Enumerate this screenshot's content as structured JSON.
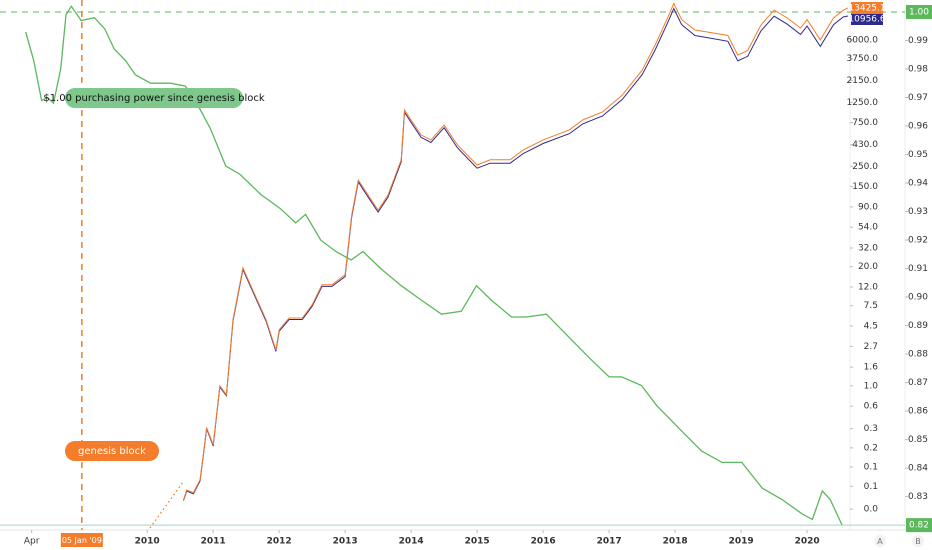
{
  "chart_data": {
    "type": "line",
    "log_scale": true,
    "xlim": [
      2007.77,
      2020.65
    ],
    "xticks": [
      {
        "value": 2008.25,
        "label": "Apr"
      },
      2010,
      2011,
      2012,
      2013,
      2014,
      2015,
      2016,
      2017,
      2018,
      2019,
      2020
    ],
    "genesis": {
      "x": 2009.01,
      "label": "05 Jan '09",
      "color": "#f57c2a"
    },
    "annotations": [
      {
        "text": "$1.00 purchasing power since genesis block",
        "color": "#7dc88a"
      },
      {
        "text": "genesis block",
        "color": "#f57c2a"
      }
    ],
    "ylim": [
      0.028,
      16370
    ],
    "yticks": [
      {
        "value": 6000,
        "label": "6000.0"
      },
      {
        "value": 3750,
        "label": "3750.0"
      },
      {
        "value": 2150,
        "label": "2150.0"
      },
      {
        "value": 1250,
        "label": "1250.0"
      },
      {
        "value": 750,
        "label": "750.0"
      },
      {
        "value": 430,
        "label": "430.0"
      },
      {
        "value": 250,
        "label": "250.0"
      },
      {
        "value": 150,
        "label": "150.0"
      },
      {
        "value": 90,
        "label": "90.0"
      },
      {
        "value": 54,
        "label": "54.0"
      },
      {
        "value": 32,
        "label": "32.0"
      },
      {
        "value": 20,
        "label": "20.0"
      },
      {
        "value": 12,
        "label": "12.0"
      },
      7.5,
      4.5,
      2.7,
      1.6,
      {
        "value": 1,
        "label": "1.0"
      },
      0.6,
      {
        "value": 0.34,
        "label": "0.3"
      },
      {
        "value": 0.21,
        "label": "0.2"
      },
      {
        "value": 0.13,
        "label": "0.1"
      },
      {
        "value": 0.08,
        "label": "0.1"
      },
      {
        "value": 0.045,
        "label": "0.0"
      }
    ],
    "y2lim": [
      0.819,
      1.0042
    ],
    "y2ticks": [
      {
        "value": 0.99,
        "label": "0.99"
      },
      {
        "value": 0.98,
        "label": "0.98"
      },
      {
        "value": 0.97,
        "label": "0.97"
      },
      {
        "value": 0.96,
        "label": "0.96"
      },
      {
        "value": 0.95,
        "label": "0.95"
      },
      {
        "value": 0.94,
        "label": "0.94"
      },
      {
        "value": 0.93,
        "label": "0.93"
      },
      {
        "value": 0.92,
        "label": "0.92"
      },
      {
        "value": 0.91,
        "label": "0.91"
      },
      {
        "value": 0.9,
        "label": "0.90"
      },
      {
        "value": 0.89,
        "label": "0.89"
      },
      {
        "value": 0.88,
        "label": "0.88"
      },
      {
        "value": 0.87,
        "label": "0.87"
      },
      {
        "value": 0.86,
        "label": "0.86"
      },
      {
        "value": 0.85,
        "label": "0.85"
      },
      {
        "value": 0.84,
        "label": "0.84"
      },
      {
        "value": 0.83,
        "label": "0.83"
      }
    ],
    "reference_line": {
      "value": 1,
      "label": "1.00",
      "color": "#5cb85c"
    },
    "x": [
      2010.55,
      2010.6,
      2010.7,
      2010.8,
      2010.85,
      2010.9,
      2011.0,
      2011.1,
      2011.2,
      2011.3,
      2011.45,
      2011.6,
      2011.8,
      2011.95,
      2012.0,
      2012.15,
      2012.35,
      2012.5,
      2012.65,
      2012.8,
      2013.0,
      2013.1,
      2013.2,
      2013.35,
      2013.5,
      2013.65,
      2013.85,
      2013.9,
      2014.0,
      2014.15,
      2014.3,
      2014.5,
      2014.7,
      2014.85,
      2015.0,
      2015.2,
      2015.5,
      2015.7,
      2016.0,
      2016.4,
      2016.6,
      2016.9,
      2017.2,
      2017.5,
      2017.7,
      2017.9,
      2017.98,
      2018.1,
      2018.3,
      2018.5,
      2018.8,
      2018.95,
      2019.1,
      2019.3,
      2019.5,
      2019.7,
      2019.9,
      2020.0,
      2020.2,
      2020.4,
      2020.55,
      2020.62
    ],
    "series": [
      {
        "color": "#2e2a8c",
        "last_label_color": "#2e2a8c",
        "values": [
          0.056,
          0.071,
          0.066,
          0.091,
          0.172,
          0.34,
          0.22,
          0.97,
          0.78,
          5.1,
          18.7,
          10.7,
          5.1,
          2.38,
          3.95,
          5.3,
          5.3,
          7.4,
          12.2,
          12.2,
          15.6,
          70,
          169,
          115,
          79,
          115,
          280,
          975,
          755,
          518,
          455,
          660,
          400,
          308,
          238,
          270,
          270,
          345,
          443,
          568,
          725,
          885,
          1345,
          2500,
          4700,
          9700,
          13200,
          8800,
          6700,
          6350,
          5800,
          3550,
          3970,
          7500,
          10900,
          8900,
          6900,
          8500,
          5100,
          8800,
          10700,
          10956.6
        ]
      },
      {
        "color": "#f57c2a",
        "last_label_color": "#f57c2a",
        "values": [
          0.057,
          0.073,
          0.068,
          0.094,
          0.177,
          0.35,
          0.227,
          1.0,
          0.8,
          5.3,
          19.4,
          11.1,
          5.3,
          2.47,
          4.1,
          5.5,
          5.5,
          7.7,
          12.7,
          12.7,
          16.3,
          73.6,
          177,
          121,
          83,
          121,
          294,
          1030,
          800,
          550,
          485,
          705,
          430,
          333,
          258,
          294,
          294,
          377,
          485,
          625,
          800,
          980,
          1500,
          2800,
          5300,
          11000,
          15000,
          10000,
          7700,
          7300,
          6700,
          4100,
          4600,
          8700,
          12700,
          10400,
          8100,
          10000,
          6000,
          10400,
          12700,
          13425.1
        ]
      },
      {
        "color": "#5cb85c",
        "axis": "y2",
        "last_label_color": "#5cb85c",
        "x": [
          2008.16,
          2008.28,
          2008.4,
          2008.49,
          2008.58,
          2008.69,
          2008.77,
          2008.85,
          2009.0,
          2009.2,
          2009.36,
          2009.5,
          2009.67,
          2009.82,
          2010.05,
          2010.35,
          2010.58,
          2010.73,
          2010.96,
          2011.19,
          2011.41,
          2011.72,
          2012.02,
          2012.25,
          2012.4,
          2012.63,
          2012.86,
          2013.09,
          2013.27,
          2013.54,
          2013.85,
          2014.15,
          2014.46,
          2014.76,
          2014.99,
          2015.21,
          2015.52,
          2015.74,
          2016.05,
          2016.43,
          2016.73,
          2017.0,
          2017.19,
          2017.49,
          2017.72,
          2018.1,
          2018.4,
          2018.71,
          2019.01,
          2019.32,
          2019.62,
          2019.92,
          2020.08,
          2020.23,
          2020.35,
          2020.53
        ],
        "values": [
          0.993,
          0.983,
          0.969,
          0.97,
          0.968,
          0.98,
          0.999,
          1.002,
          0.997,
          0.998,
          0.994,
          0.987,
          0.983,
          0.978,
          0.975,
          0.975,
          0.974,
          0.969,
          0.959,
          0.946,
          0.943,
          0.936,
          0.931,
          0.926,
          0.929,
          0.92,
          0.916,
          0.913,
          0.916,
          0.91,
          0.904,
          0.899,
          0.894,
          0.895,
          0.904,
          0.899,
          0.893,
          0.893,
          0.894,
          0.885,
          0.878,
          0.872,
          0.872,
          0.869,
          0.862,
          0.853,
          0.846,
          0.842,
          0.842,
          0.833,
          0.829,
          0.824,
          0.822,
          0.832,
          0.829,
          0.82
        ],
        "value_labels": {
          "55": "0.82"
        }
      }
    ],
    "corner_buttons": [
      "A",
      "B"
    ]
  }
}
